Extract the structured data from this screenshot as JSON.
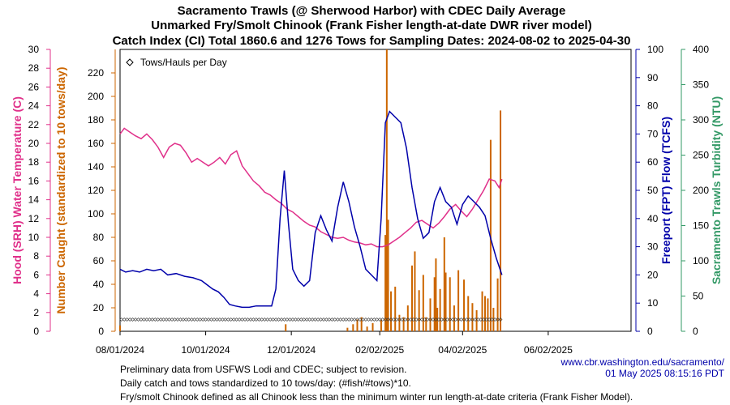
{
  "chart_data": {
    "type": "line",
    "title": [
      "Sacramento Trawls (@ Sherwood Harbor) with CDEC Daily Average",
      "Unmarked Fry/Smolt Chinook (Frank Fisher length-at-date DWR river model)",
      "Catch Index (CI) Total 1860.6 and 1276 Tows for Sampling Dates: 2024-08-02 to 2025-04-30"
    ],
    "x_tick_labels": [
      "08/01/2024",
      "10/01/2024",
      "12/01/2024",
      "02/02/2025",
      "04/02/2025",
      "06/02/2025"
    ],
    "x_tick_dates": [
      "2024-08-01",
      "2024-10-01",
      "2024-12-01",
      "2025-02-02",
      "2025-04-02",
      "2025-06-02"
    ],
    "x_range": [
      "2024-08-01",
      "2025-07-31"
    ],
    "axes": {
      "temp": {
        "label": "Hood (SRH) Water Temperature (C)",
        "range": [
          0,
          30
        ],
        "ticks": [
          0,
          2,
          4,
          6,
          8,
          10,
          12,
          14,
          16,
          18,
          20,
          22,
          24,
          26,
          28,
          30
        ],
        "color": "#e0308a"
      },
      "catch": {
        "label": "Number Caught (standardized to 10 tows/day)",
        "range": [
          0,
          240
        ],
        "ticks": [
          0,
          20,
          40,
          60,
          80,
          100,
          120,
          140,
          160,
          180,
          200,
          220
        ],
        "color": "#cc6600"
      },
      "flow": {
        "label": "Freeport (FPT) Flow (TCFS)",
        "range": [
          0,
          100
        ],
        "ticks": [
          0,
          10,
          20,
          30,
          40,
          50,
          60,
          70,
          80,
          90,
          100
        ],
        "color": "#0000aa"
      },
      "turbidity": {
        "label": "Sacramento Trawls Turbidity (NTU)",
        "range": [
          0,
          400
        ],
        "ticks": [
          0,
          50,
          100,
          150,
          200,
          250,
          300,
          350,
          400
        ],
        "color": "#339966"
      }
    },
    "legend": {
      "label": "Tows/Hauls per Day",
      "marker": "diamond",
      "placement": "top-left"
    },
    "series": [
      {
        "name": "Hood (SRH) Water Temperature (C)",
        "axis": "temp",
        "color": "#e0308a",
        "points": [
          [
            "2024-08-01",
            21.0
          ],
          [
            "2024-08-04",
            21.6
          ],
          [
            "2024-08-08",
            21.2
          ],
          [
            "2024-08-12",
            20.8
          ],
          [
            "2024-08-16",
            20.5
          ],
          [
            "2024-08-20",
            21.0
          ],
          [
            "2024-08-24",
            20.4
          ],
          [
            "2024-08-28",
            19.6
          ],
          [
            "2024-09-01",
            18.5
          ],
          [
            "2024-09-05",
            19.6
          ],
          [
            "2024-09-09",
            20.0
          ],
          [
            "2024-09-13",
            19.8
          ],
          [
            "2024-09-17",
            19.0
          ],
          [
            "2024-09-21",
            18.0
          ],
          [
            "2024-09-25",
            18.4
          ],
          [
            "2024-09-29",
            18.0
          ],
          [
            "2024-10-03",
            17.6
          ],
          [
            "2024-10-07",
            18.0
          ],
          [
            "2024-10-11",
            18.5
          ],
          [
            "2024-10-15",
            17.8
          ],
          [
            "2024-10-19",
            18.8
          ],
          [
            "2024-10-23",
            19.2
          ],
          [
            "2024-10-27",
            17.6
          ],
          [
            "2024-10-31",
            16.8
          ],
          [
            "2024-11-04",
            16.0
          ],
          [
            "2024-11-08",
            15.5
          ],
          [
            "2024-11-12",
            14.8
          ],
          [
            "2024-11-16",
            14.5
          ],
          [
            "2024-11-20",
            14.0
          ],
          [
            "2024-11-24",
            13.6
          ],
          [
            "2024-11-28",
            13.0
          ],
          [
            "2024-12-02",
            12.7
          ],
          [
            "2024-12-06",
            12.2
          ],
          [
            "2024-12-10",
            11.7
          ],
          [
            "2024-12-14",
            11.3
          ],
          [
            "2024-12-18",
            11.1
          ],
          [
            "2024-12-22",
            10.6
          ],
          [
            "2024-12-26",
            10.3
          ],
          [
            "2024-12-30",
            10.0
          ],
          [
            "2025-01-03",
            9.9
          ],
          [
            "2025-01-07",
            10.0
          ],
          [
            "2025-01-11",
            9.7
          ],
          [
            "2025-01-15",
            9.5
          ],
          [
            "2025-01-19",
            9.4
          ],
          [
            "2025-01-23",
            9.2
          ],
          [
            "2025-01-27",
            9.3
          ],
          [
            "2025-01-31",
            9.0
          ],
          [
            "2025-02-04",
            9.0
          ],
          [
            "2025-02-08",
            9.2
          ],
          [
            "2025-02-12",
            9.6
          ],
          [
            "2025-02-16",
            10.0
          ],
          [
            "2025-02-20",
            10.5
          ],
          [
            "2025-02-24",
            11.0
          ],
          [
            "2025-02-28",
            11.6
          ],
          [
            "2025-03-04",
            11.8
          ],
          [
            "2025-03-08",
            11.4
          ],
          [
            "2025-03-12",
            11.0
          ],
          [
            "2025-03-16",
            11.5
          ],
          [
            "2025-03-20",
            12.2
          ],
          [
            "2025-03-24",
            13.0
          ],
          [
            "2025-03-28",
            13.5
          ],
          [
            "2025-04-01",
            12.8
          ],
          [
            "2025-04-05",
            12.2
          ],
          [
            "2025-04-09",
            13.0
          ],
          [
            "2025-04-13",
            14.0
          ],
          [
            "2025-04-17",
            15.0
          ],
          [
            "2025-04-21",
            16.2
          ],
          [
            "2025-04-25",
            16.0
          ],
          [
            "2025-04-28",
            15.3
          ],
          [
            "2025-04-30",
            16.2
          ]
        ]
      },
      {
        "name": "Freeport (FPT) Flow (TCFS)",
        "axis": "flow",
        "color": "#0000aa",
        "points": [
          [
            "2024-08-01",
            22.0
          ],
          [
            "2024-08-05",
            21.0
          ],
          [
            "2024-08-10",
            21.5
          ],
          [
            "2024-08-15",
            21.0
          ],
          [
            "2024-08-20",
            22.0
          ],
          [
            "2024-08-25",
            21.5
          ],
          [
            "2024-08-30",
            22.0
          ],
          [
            "2024-09-04",
            20.0
          ],
          [
            "2024-09-10",
            20.5
          ],
          [
            "2024-09-16",
            19.5
          ],
          [
            "2024-09-22",
            19.0
          ],
          [
            "2024-09-28",
            18.0
          ],
          [
            "2024-10-02",
            16.5
          ],
          [
            "2024-10-06",
            15.0
          ],
          [
            "2024-10-10",
            14.0
          ],
          [
            "2024-10-14",
            12.0
          ],
          [
            "2024-10-18",
            9.5
          ],
          [
            "2024-10-22",
            9.0
          ],
          [
            "2024-10-27",
            8.5
          ],
          [
            "2024-11-01",
            8.5
          ],
          [
            "2024-11-06",
            9.0
          ],
          [
            "2024-11-12",
            9.0
          ],
          [
            "2024-11-17",
            9.0
          ],
          [
            "2024-11-20",
            15.0
          ],
          [
            "2024-11-23",
            40.0
          ],
          [
            "2024-11-26",
            57.0
          ],
          [
            "2024-11-29",
            38.0
          ],
          [
            "2024-12-02",
            22.0
          ],
          [
            "2024-12-06",
            18.0
          ],
          [
            "2024-12-10",
            16.0
          ],
          [
            "2024-12-14",
            18.0
          ],
          [
            "2024-12-18",
            35.0
          ],
          [
            "2024-12-22",
            41.0
          ],
          [
            "2024-12-26",
            36.0
          ],
          [
            "2024-12-30",
            32.0
          ],
          [
            "2025-01-03",
            44.0
          ],
          [
            "2025-01-07",
            53.0
          ],
          [
            "2025-01-11",
            46.0
          ],
          [
            "2025-01-15",
            37.0
          ],
          [
            "2025-01-19",
            30.0
          ],
          [
            "2025-01-23",
            22.0
          ],
          [
            "2025-01-27",
            20.0
          ],
          [
            "2025-01-31",
            18.0
          ],
          [
            "2025-02-03",
            40.0
          ],
          [
            "2025-02-06",
            74.0
          ],
          [
            "2025-02-09",
            78.0
          ],
          [
            "2025-02-13",
            76.0
          ],
          [
            "2025-02-17",
            74.0
          ],
          [
            "2025-02-21",
            65.0
          ],
          [
            "2025-02-25",
            51.0
          ],
          [
            "2025-03-01",
            40.0
          ],
          [
            "2025-03-05",
            33.0
          ],
          [
            "2025-03-09",
            35.0
          ],
          [
            "2025-03-13",
            46.0
          ],
          [
            "2025-03-17",
            51.0
          ],
          [
            "2025-03-21",
            46.0
          ],
          [
            "2025-03-25",
            44.0
          ],
          [
            "2025-03-29",
            38.0
          ],
          [
            "2025-04-02",
            45.0
          ],
          [
            "2025-04-06",
            48.0
          ],
          [
            "2025-04-10",
            46.0
          ],
          [
            "2025-04-14",
            44.0
          ],
          [
            "2025-04-18",
            41.0
          ],
          [
            "2025-04-22",
            33.0
          ],
          [
            "2025-04-26",
            26.0
          ],
          [
            "2025-04-30",
            20.0
          ]
        ]
      },
      {
        "name": "Number Caught (standardized to 10 tows/day)",
        "axis": "catch",
        "color": "#cc6600",
        "bars": [
          [
            "2024-08-01",
            5
          ],
          [
            "2024-11-27",
            6
          ],
          [
            "2025-01-10",
            3
          ],
          [
            "2025-01-14",
            6
          ],
          [
            "2025-01-17",
            10
          ],
          [
            "2025-01-20",
            12
          ],
          [
            "2025-01-24",
            4
          ],
          [
            "2025-01-28",
            7
          ],
          [
            "2025-02-03",
            10
          ],
          [
            "2025-02-06",
            82
          ],
          [
            "2025-02-07",
            240
          ],
          [
            "2025-02-08",
            95
          ],
          [
            "2025-02-10",
            34
          ],
          [
            "2025-02-13",
            38
          ],
          [
            "2025-02-16",
            14
          ],
          [
            "2025-02-19",
            12
          ],
          [
            "2025-02-22",
            22
          ],
          [
            "2025-02-25",
            56
          ],
          [
            "2025-02-27",
            68
          ],
          [
            "2025-03-02",
            35
          ],
          [
            "2025-03-05",
            48
          ],
          [
            "2025-03-07",
            12
          ],
          [
            "2025-03-10",
            28
          ],
          [
            "2025-03-13",
            46
          ],
          [
            "2025-03-14",
            62
          ],
          [
            "2025-03-15",
            20
          ],
          [
            "2025-03-17",
            36
          ],
          [
            "2025-03-20",
            80
          ],
          [
            "2025-03-21",
            50
          ],
          [
            "2025-03-24",
            46
          ],
          [
            "2025-03-27",
            22
          ],
          [
            "2025-03-30",
            52
          ],
          [
            "2025-04-03",
            44
          ],
          [
            "2025-04-06",
            30
          ],
          [
            "2025-04-09",
            24
          ],
          [
            "2025-04-12",
            18
          ],
          [
            "2025-04-16",
            34
          ],
          [
            "2025-04-18",
            30
          ],
          [
            "2025-04-20",
            28
          ],
          [
            "2025-04-22",
            163
          ],
          [
            "2025-04-24",
            20
          ],
          [
            "2025-04-27",
            45
          ],
          [
            "2025-04-29",
            188
          ]
        ]
      },
      {
        "name": "Tows/Hauls per Day",
        "axis": "catch",
        "marker": "diamond",
        "points_rule": "sampling days 2024-08-02 to 2025-04-30, value 10 (standardized)"
      }
    ]
  },
  "footer": {
    "url": "www.cbr.washington.edu/sacramento/",
    "timestamp": "01 May 2025 08:15:16 PDT",
    "notes": [
      "Preliminary data from USFWS Lodi and CDEC; subject to revision.",
      "Daily catch and tows standardized to 10 tows/day: (#fish/#tows)*10.",
      "Fry/smolt Chinook defined as all Chinook less than the minimum winter run length-at-date criteria (Frank Fisher Model)."
    ]
  }
}
